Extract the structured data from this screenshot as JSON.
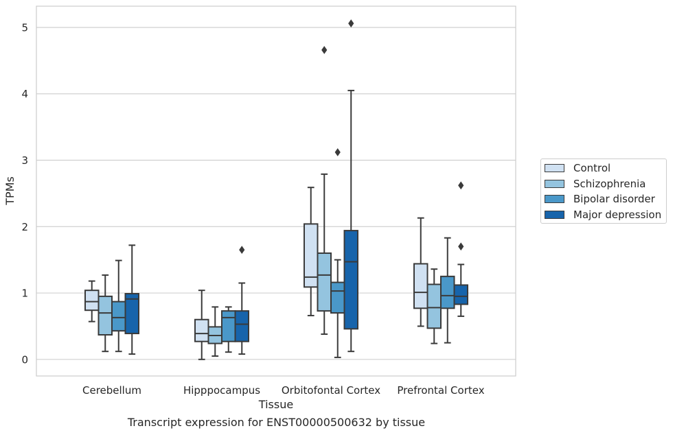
{
  "colors": {
    "Control": "#d0e1f2",
    "Schizophrenia": "#94c4df",
    "Bipolar disorder": "#4a98c9",
    "Major depression": "#1764ab",
    "box_edge": "#3a3a3a",
    "grid": "#d0d0d0",
    "frame": "#cccccc"
  },
  "caption": "Transcript expression for ENST00000500632 by tissue",
  "chart_data": {
    "type": "box",
    "xlabel": "Tissue",
    "ylabel": "TPMs",
    "ylim": [
      -0.25,
      5.32
    ],
    "yticks": [
      0,
      1,
      2,
      3,
      4,
      5
    ],
    "grid": true,
    "legend_position": "right",
    "categories": [
      "Cerebellum",
      "Hipppocampus",
      "Orbitofontal Cortex",
      "Prefrontal Cortex"
    ],
    "series": [
      {
        "name": "Control",
        "boxes": [
          {
            "whislo": 0.57,
            "q1": 0.74,
            "med": 0.87,
            "q3": 1.04,
            "whishi": 1.18,
            "fliers": []
          },
          {
            "whislo": 0.0,
            "q1": 0.27,
            "med": 0.39,
            "q3": 0.6,
            "whishi": 1.04,
            "fliers": []
          },
          {
            "whislo": 0.66,
            "q1": 1.09,
            "med": 1.24,
            "q3": 2.04,
            "whishi": 2.59,
            "fliers": []
          },
          {
            "whislo": 0.5,
            "q1": 0.77,
            "med": 1.01,
            "q3": 1.44,
            "whishi": 2.13,
            "fliers": []
          }
        ]
      },
      {
        "name": "Schizophrenia",
        "boxes": [
          {
            "whislo": 0.12,
            "q1": 0.37,
            "med": 0.7,
            "q3": 0.95,
            "whishi": 1.27,
            "fliers": []
          },
          {
            "whislo": 0.05,
            "q1": 0.24,
            "med": 0.36,
            "q3": 0.49,
            "whishi": 0.79,
            "fliers": []
          },
          {
            "whislo": 0.38,
            "q1": 0.73,
            "med": 1.27,
            "q3": 1.6,
            "whishi": 2.79,
            "fliers": [
              4.66
            ]
          },
          {
            "whislo": 0.24,
            "q1": 0.47,
            "med": 0.78,
            "q3": 1.13,
            "whishi": 1.36,
            "fliers": []
          }
        ]
      },
      {
        "name": "Bipolar disorder",
        "boxes": [
          {
            "whislo": 0.12,
            "q1": 0.43,
            "med": 0.63,
            "q3": 0.87,
            "whishi": 1.49,
            "fliers": []
          },
          {
            "whislo": 0.11,
            "q1": 0.27,
            "med": 0.63,
            "q3": 0.73,
            "whishi": 0.79,
            "fliers": []
          },
          {
            "whislo": 0.03,
            "q1": 0.7,
            "med": 1.03,
            "q3": 1.16,
            "whishi": 1.5,
            "fliers": [
              3.12
            ]
          },
          {
            "whislo": 0.25,
            "q1": 0.77,
            "med": 0.96,
            "q3": 1.25,
            "whishi": 1.83,
            "fliers": []
          }
        ]
      },
      {
        "name": "Major depression",
        "boxes": [
          {
            "whislo": 0.08,
            "q1": 0.39,
            "med": 0.91,
            "q3": 0.99,
            "whishi": 1.72,
            "fliers": []
          },
          {
            "whislo": 0.08,
            "q1": 0.27,
            "med": 0.53,
            "q3": 0.73,
            "whishi": 1.15,
            "fliers": [
              1.65
            ]
          },
          {
            "whislo": 0.12,
            "q1": 0.46,
            "med": 1.47,
            "q3": 1.94,
            "whishi": 4.05,
            "fliers": [
              5.06
            ]
          },
          {
            "whislo": 0.65,
            "q1": 0.83,
            "med": 0.95,
            "q3": 1.12,
            "whishi": 1.43,
            "fliers": [
              1.7,
              2.62
            ]
          }
        ]
      }
    ]
  }
}
